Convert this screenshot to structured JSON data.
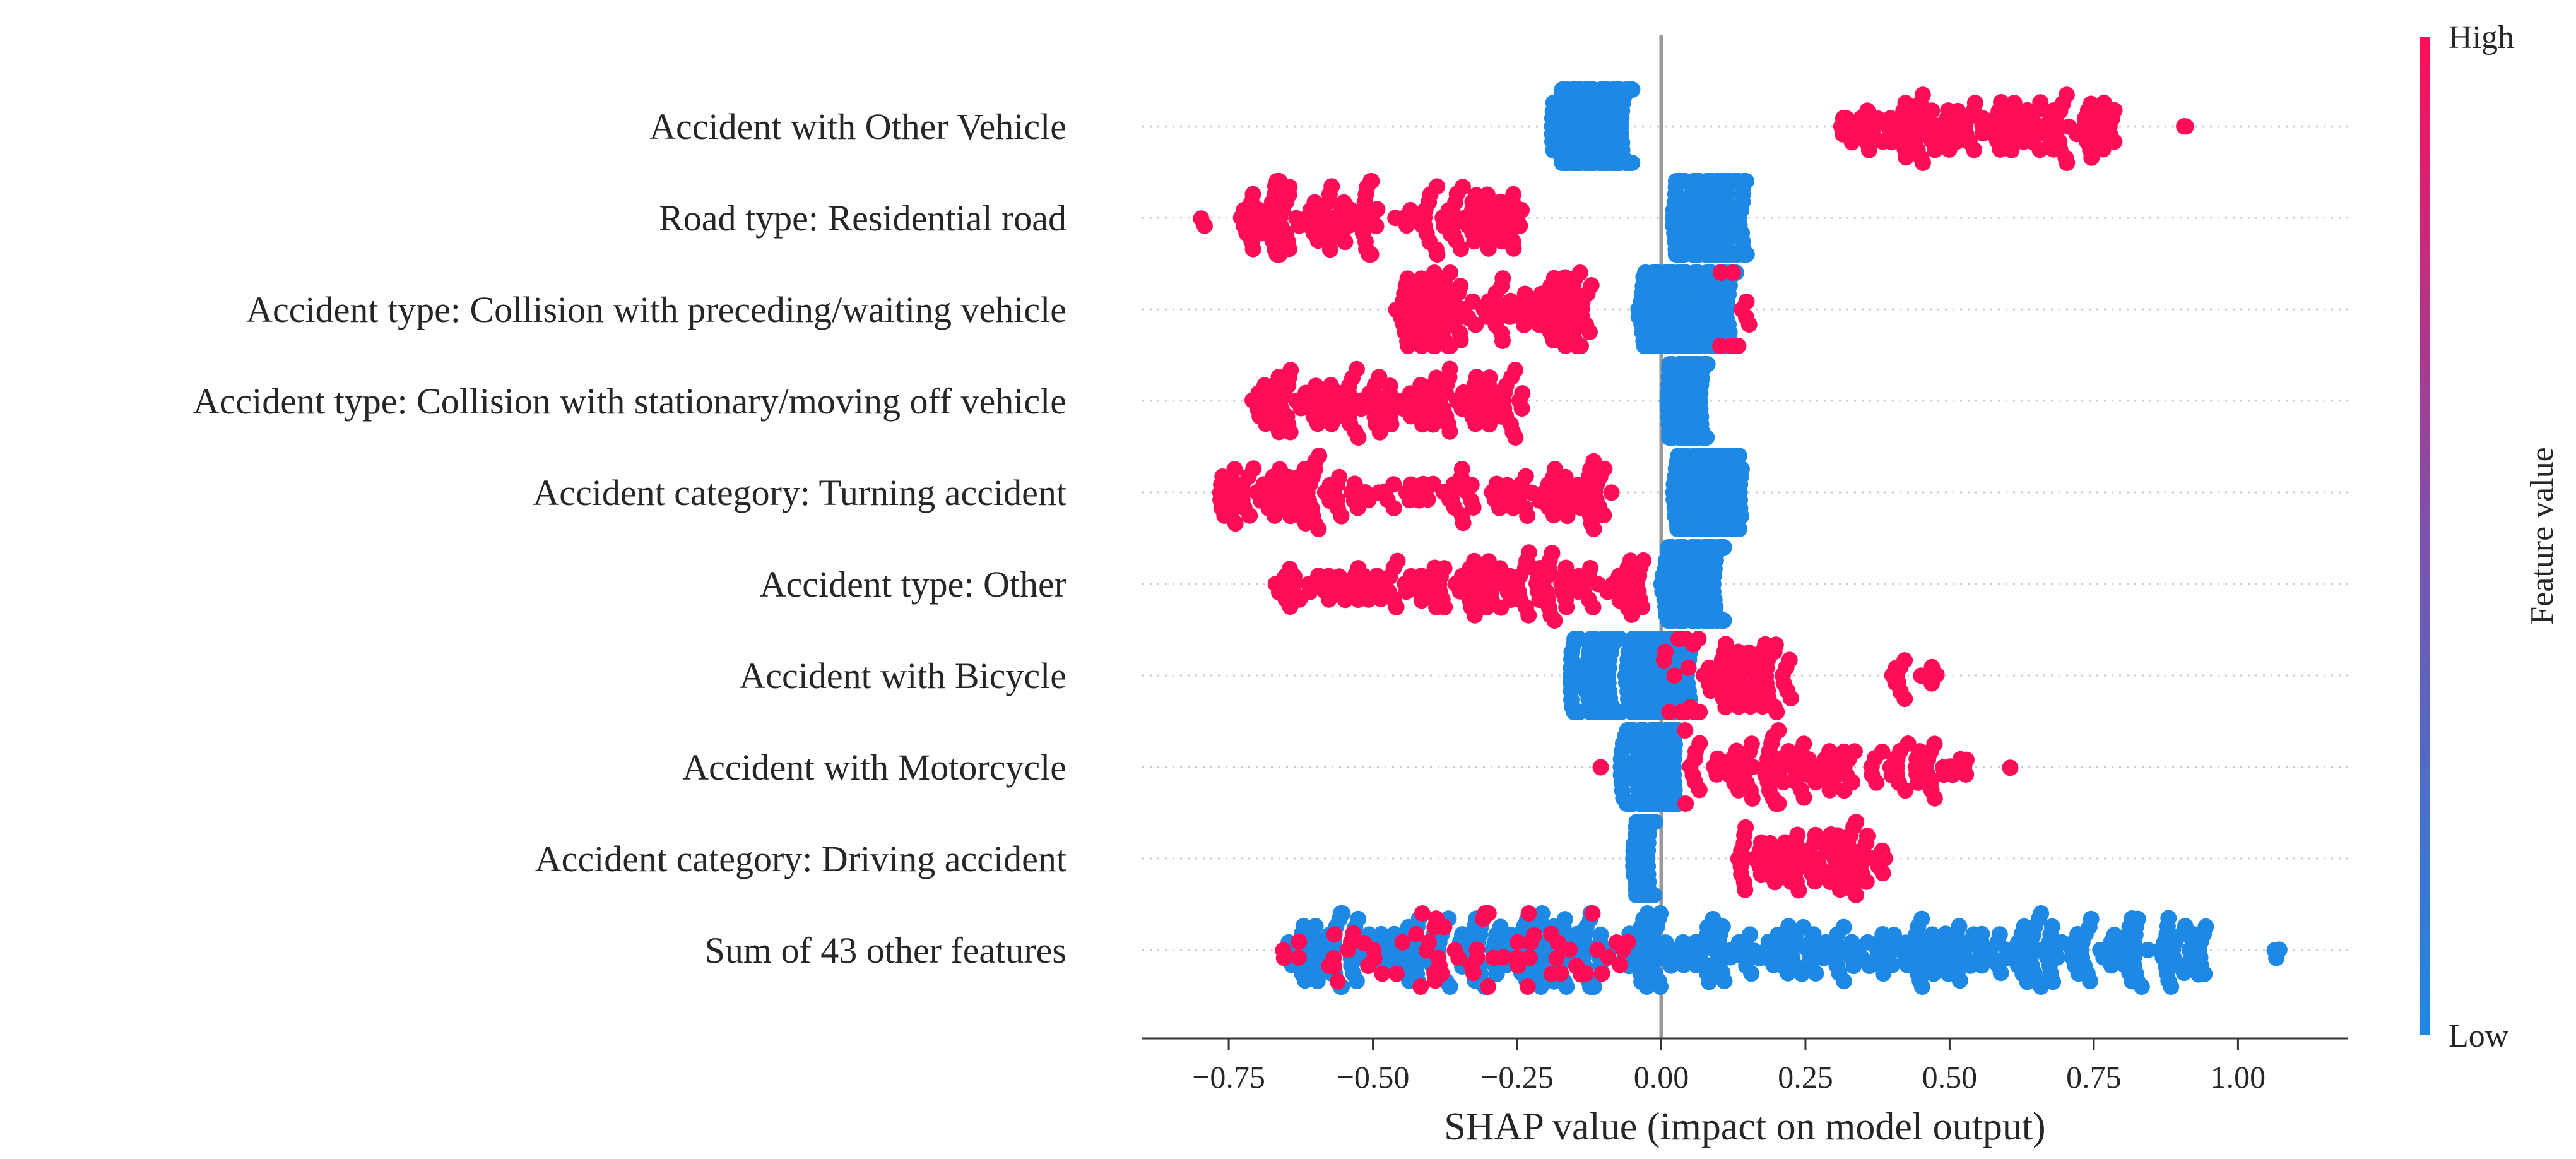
{
  "chart_data": {
    "type": "scatter",
    "subtype": "shap_beeswarm",
    "xlabel": "SHAP value (impact on model output)",
    "xlim": [
      -0.9,
      1.19
    ],
    "xticks": [
      -0.75,
      -0.5,
      -0.25,
      0.0,
      0.25,
      0.5,
      0.75,
      1.0
    ],
    "xtick_labels": [
      "−0.75",
      "−0.50",
      "−0.25",
      "0.00",
      "0.25",
      "0.50",
      "0.75",
      "1.00"
    ],
    "colorbar": {
      "label": "Feature value",
      "high": "High",
      "low": "Low",
      "high_color": "#ff0d57",
      "low_color": "#1e88e5"
    },
    "colors": {
      "high": "#ff0d57",
      "low": "#1e88e5",
      "zero_line": "#999999",
      "grid": "#cccccc",
      "axis": "#333333"
    },
    "features": [
      {
        "name": "Accident with Other Vehicle",
        "clusters": [
          {
            "range": [
              -0.19,
              -0.05
            ],
            "n": 170,
            "value": "low"
          },
          {
            "range": [
              0.3,
              0.79
            ],
            "n": 130,
            "value": "high"
          },
          {
            "range": [
              0.9,
              0.91
            ],
            "n": 2,
            "value": "high"
          }
        ]
      },
      {
        "name": "Road type: Residential road",
        "clusters": [
          {
            "range": [
              -0.8,
              -0.79
            ],
            "n": 2,
            "value": "high"
          },
          {
            "range": [
              -0.73,
              -0.24
            ],
            "n": 140,
            "value": "high"
          },
          {
            "range": [
              0.02,
              0.15
            ],
            "n": 160,
            "value": "low"
          }
        ]
      },
      {
        "name": "Accident type: Collision with preceding/waiting vehicle",
        "clusters": [
          {
            "range": [
              -0.46,
              -0.12
            ],
            "n": 120,
            "value": "high"
          },
          {
            "range": [
              -0.04,
              0.13
            ],
            "n": 200,
            "value": "low"
          },
          {
            "range": [
              0.1,
              0.17
            ],
            "n": 10,
            "value": "high"
          }
        ]
      },
      {
        "name": "Accident type: Collision with stationary/moving off vehicle",
        "clusters": [
          {
            "range": [
              -0.71,
              -0.24
            ],
            "n": 130,
            "value": "high"
          },
          {
            "range": [
              0.01,
              0.08
            ],
            "n": 120,
            "value": "low"
          }
        ]
      },
      {
        "name": "Accident category: Turning accident",
        "clusters": [
          {
            "range": [
              -0.77,
              -0.08
            ],
            "n": 150,
            "value": "high"
          },
          {
            "range": [
              0.02,
              0.14
            ],
            "n": 150,
            "value": "low"
          }
        ]
      },
      {
        "name": "Accident type: Other",
        "clusters": [
          {
            "range": [
              -0.67,
              -0.03
            ],
            "n": 150,
            "value": "high"
          },
          {
            "range": [
              0.0,
              0.11
            ],
            "n": 130,
            "value": "low"
          }
        ]
      },
      {
        "name": "Accident with Bicycle",
        "clusters": [
          {
            "range": [
              -0.16,
              0.05
            ],
            "n": 200,
            "value": "low"
          },
          {
            "range": [
              0.0,
              0.23
            ],
            "n": 70,
            "value": "high"
          },
          {
            "range": [
              0.4,
              0.48
            ],
            "n": 14,
            "value": "high"
          }
        ]
      },
      {
        "name": "Accident with Motorcycle",
        "clusters": [
          {
            "range": [
              -0.07,
              0.03
            ],
            "n": 160,
            "value": "low"
          },
          {
            "range": [
              -0.11,
              -0.1
            ],
            "n": 1,
            "value": "high"
          },
          {
            "range": [
              0.04,
              0.53
            ],
            "n": 110,
            "value": "high"
          },
          {
            "range": [
              0.6,
              0.61
            ],
            "n": 1,
            "value": "high"
          }
        ]
      },
      {
        "name": "Accident category: Driving accident",
        "clusters": [
          {
            "range": [
              -0.05,
              -0.01
            ],
            "n": 60,
            "value": "low"
          },
          {
            "range": [
              0.13,
              0.4
            ],
            "n": 80,
            "value": "high"
          }
        ]
      },
      {
        "name": "Sum of 43 other features",
        "clusters": [
          {
            "range": [
              -0.65,
              0.95
            ],
            "n": 420,
            "value": "low"
          },
          {
            "range": [
              -0.66,
              -0.05
            ],
            "n": 70,
            "value": "high"
          },
          {
            "range": [
              1.03,
              1.1
            ],
            "n": 3,
            "value": "low"
          }
        ]
      }
    ]
  }
}
